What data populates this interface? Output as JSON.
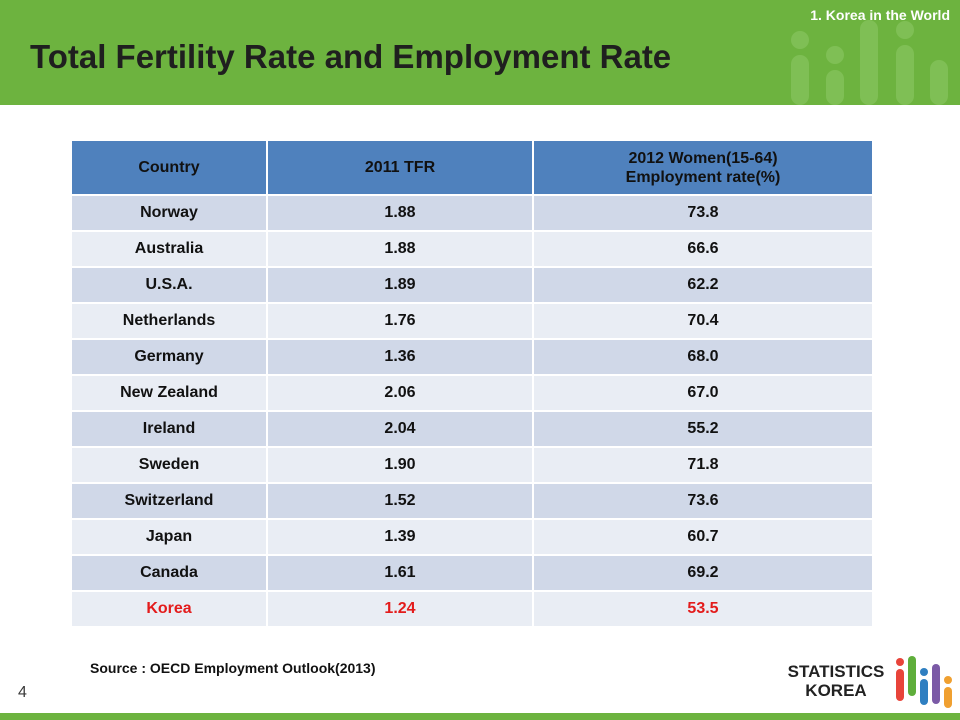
{
  "header": {
    "section_label": "1.  Korea in the World",
    "title": "Total Fertility Rate and Employment Rate"
  },
  "table": {
    "headers": [
      "Country",
      "2011 TFR",
      "2012 Women(15-64)\nEmployment  rate(%)"
    ],
    "rows": [
      [
        "Norway",
        "1.88",
        "73.8"
      ],
      [
        "Australia",
        "1.88",
        "66.6"
      ],
      [
        "U.S.A.",
        "1.89",
        "62.2"
      ],
      [
        "Netherlands",
        "1.76",
        "70.4"
      ],
      [
        "Germany",
        "1.36",
        "68.0"
      ],
      [
        "New Zealand",
        "2.06",
        "67.0"
      ],
      [
        "Ireland",
        "2.04",
        "55.2"
      ],
      [
        "Sweden",
        "1.90",
        "71.8"
      ],
      [
        "Switzerland",
        "1.52",
        "73.6"
      ],
      [
        "Japan",
        "1.39",
        "60.7"
      ],
      [
        "Canada",
        "1.61",
        "69.2"
      ],
      [
        "Korea",
        "1.24",
        "53.5"
      ]
    ],
    "highlight_color": "#e31b1b",
    "header_color": "#4f81bd"
  },
  "source": "Source : OECD Employment Outlook(2013)",
  "page_number": "4",
  "logo": {
    "line1": "STATISTICS",
    "line2": "KOREA"
  },
  "colors": {
    "brand_green": "#6db33f"
  }
}
